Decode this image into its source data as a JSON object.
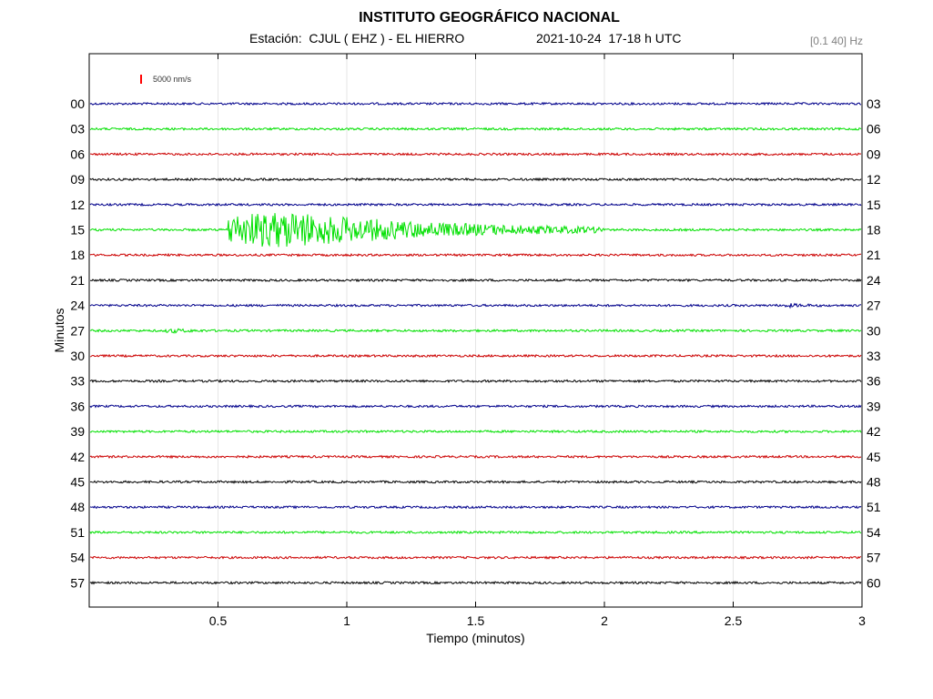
{
  "header": {
    "title": "INSTITUTO GEOGRÁFICO NACIONAL",
    "station": "Estación:  CJUL ( EHZ ) - EL HIERRO",
    "datetime": "2021-10-24  17-18 h UTC",
    "filter": "[0.1 40] Hz"
  },
  "chart_data": {
    "type": "line",
    "title": "INSTITUTO GEOGRÁFICO NACIONAL",
    "xlabel": "Tiempo (minutos)",
    "ylabel": "Minutos",
    "xlim": [
      0,
      3
    ],
    "x_ticks": [
      "0.5",
      "1",
      "1.5",
      "2",
      "2.5",
      "3"
    ],
    "x_tick_values": [
      0.5,
      1,
      1.5,
      2,
      2.5,
      3
    ],
    "scale_label": "5000 nm/s",
    "scale_color": "#ff0000",
    "grid_x": true,
    "trace_colors": [
      "#00008b",
      "#00e000",
      "#cc0000",
      "#000000"
    ],
    "left_labels": [
      "00",
      "03",
      "06",
      "09",
      "12",
      "15",
      "18",
      "21",
      "24",
      "27",
      "30",
      "33",
      "36",
      "39",
      "42",
      "45",
      "48",
      "51",
      "54",
      "57"
    ],
    "right_labels": [
      "03",
      "06",
      "09",
      "12",
      "15",
      "18",
      "21",
      "24",
      "27",
      "30",
      "33",
      "36",
      "39",
      "42",
      "45",
      "48",
      "51",
      "54",
      "57",
      "60"
    ],
    "events": [
      {
        "row": 5,
        "start_min": 0.54,
        "end_min": 2.0,
        "peak_amplitude_rel": 1.0
      },
      {
        "row": 9,
        "start_min": 0.3,
        "end_min": 0.45,
        "peak_amplitude_rel": 0.08
      },
      {
        "row": 8,
        "start_min": 2.7,
        "end_min": 2.85,
        "peak_amplitude_rel": 0.06
      }
    ]
  }
}
